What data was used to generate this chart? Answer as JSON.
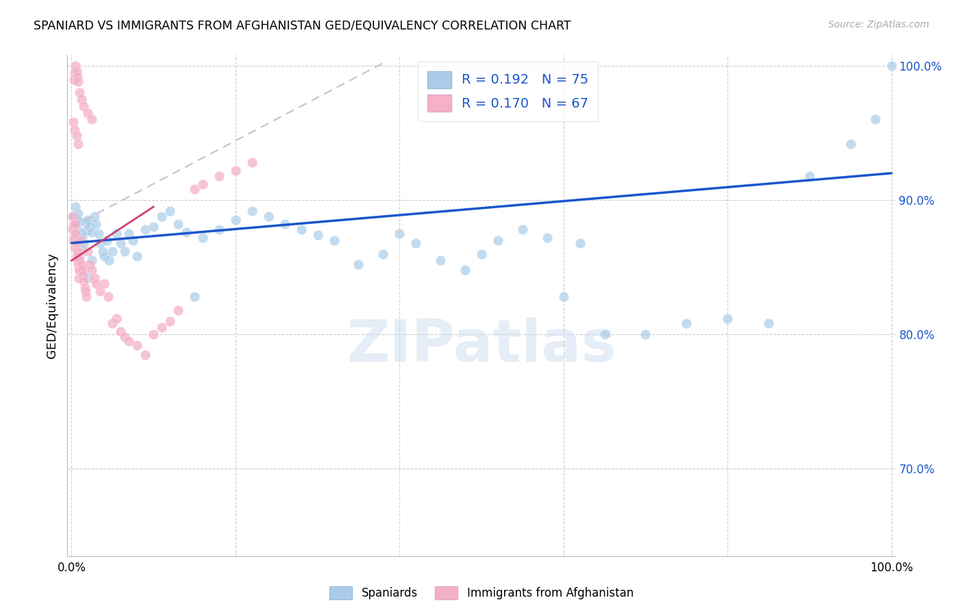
{
  "title": "SPANIARD VS IMMIGRANTS FROM AFGHANISTAN GED/EQUIVALENCY CORRELATION CHART",
  "source": "Source: ZipAtlas.com",
  "ylabel": "GED/Equivalency",
  "watermark": "ZIPatlas",
  "legend_blue_label": "Spaniards",
  "legend_pink_label": "Immigrants from Afghanistan",
  "R_blue": 0.192,
  "N_blue": 75,
  "R_pink": 0.17,
  "N_pink": 67,
  "blue_color": "#aacce8",
  "pink_color": "#f5b0c8",
  "trendline_blue_color": "#1a56cc",
  "trendline_pink_color": "#d04070",
  "trendline_dash_color": "#ccbbcc",
  "ylim_min": 0.635,
  "ylim_max": 1.008,
  "xlim_min": -0.005,
  "xlim_max": 1.005,
  "right_yticks": [
    0.7,
    0.8,
    0.9,
    1.0
  ],
  "right_yticklabels": [
    "70.0%",
    "80.0%",
    "90.0%",
    "100.0%"
  ],
  "xticks": [
    0.0,
    1.0
  ],
  "xticklabels": [
    "0.0%",
    "100.0%"
  ],
  "grid_yticks": [
    0.7,
    0.8,
    0.9,
    1.0
  ],
  "grid_xticks": [
    0.0,
    0.2,
    0.4,
    0.6,
    0.8,
    1.0
  ],
  "blue_trend_x0": 0.0,
  "blue_trend_y0": 0.868,
  "blue_trend_x1": 1.0,
  "blue_trend_y1": 0.92,
  "pink_trend_solid_x0": 0.0,
  "pink_trend_solid_y0": 0.855,
  "pink_trend_solid_x1": 0.1,
  "pink_trend_solid_y1": 0.895,
  "pink_trend_dash_x0": 0.0,
  "pink_trend_dash_y0": 0.88,
  "pink_trend_dash_x1": 0.38,
  "pink_trend_dash_y1": 1.002,
  "blue_x": [
    0.002,
    0.003,
    0.004,
    0.005,
    0.006,
    0.007,
    0.008,
    0.009,
    0.01,
    0.012,
    0.013,
    0.015,
    0.017,
    0.018,
    0.02,
    0.022,
    0.025,
    0.028,
    0.03,
    0.033,
    0.035,
    0.038,
    0.04,
    0.043,
    0.046,
    0.05,
    0.055,
    0.06,
    0.065,
    0.07,
    0.075,
    0.08,
    0.09,
    0.1,
    0.11,
    0.12,
    0.13,
    0.14,
    0.15,
    0.16,
    0.18,
    0.2,
    0.22,
    0.24,
    0.26,
    0.28,
    0.3,
    0.32,
    0.35,
    0.38,
    0.4,
    0.42,
    0.45,
    0.48,
    0.5,
    0.52,
    0.55,
    0.58,
    0.6,
    0.62,
    0.65,
    0.7,
    0.75,
    0.8,
    0.85,
    0.9,
    0.95,
    0.98,
    1.0,
    0.008,
    0.01,
    0.012,
    0.015,
    0.02,
    0.025
  ],
  "blue_y": [
    0.888,
    0.882,
    0.876,
    0.895,
    0.885,
    0.878,
    0.89,
    0.884,
    0.87,
    0.875,
    0.872,
    0.868,
    0.883,
    0.877,
    0.885,
    0.88,
    0.876,
    0.888,
    0.882,
    0.875,
    0.868,
    0.862,
    0.858,
    0.87,
    0.855,
    0.862,
    0.875,
    0.868,
    0.862,
    0.875,
    0.87,
    0.858,
    0.878,
    0.88,
    0.888,
    0.892,
    0.882,
    0.876,
    0.828,
    0.872,
    0.878,
    0.885,
    0.892,
    0.888,
    0.882,
    0.878,
    0.874,
    0.87,
    0.852,
    0.86,
    0.875,
    0.868,
    0.855,
    0.848,
    0.86,
    0.87,
    0.878,
    0.872,
    0.828,
    0.868,
    0.8,
    0.8,
    0.808,
    0.812,
    0.808,
    0.918,
    0.942,
    0.96,
    1.0,
    0.87,
    0.858,
    0.865,
    0.848,
    0.842,
    0.855
  ],
  "pink_x": [
    0.001,
    0.001,
    0.002,
    0.002,
    0.003,
    0.003,
    0.004,
    0.004,
    0.005,
    0.005,
    0.006,
    0.006,
    0.007,
    0.007,
    0.008,
    0.008,
    0.009,
    0.009,
    0.01,
    0.01,
    0.011,
    0.012,
    0.013,
    0.014,
    0.015,
    0.016,
    0.017,
    0.018,
    0.02,
    0.022,
    0.025,
    0.028,
    0.03,
    0.035,
    0.04,
    0.045,
    0.05,
    0.055,
    0.06,
    0.065,
    0.07,
    0.08,
    0.09,
    0.1,
    0.11,
    0.12,
    0.13,
    0.15,
    0.16,
    0.18,
    0.2,
    0.22,
    0.003,
    0.004,
    0.005,
    0.006,
    0.007,
    0.008,
    0.01,
    0.012,
    0.015,
    0.02,
    0.025,
    0.002,
    0.004,
    0.006,
    0.008
  ],
  "pink_y": [
    0.878,
    0.888,
    0.87,
    0.88,
    0.882,
    0.872,
    0.865,
    0.87,
    0.875,
    0.882,
    0.858,
    0.868,
    0.855,
    0.862,
    0.852,
    0.858,
    0.848,
    0.842,
    0.855,
    0.848,
    0.87,
    0.852,
    0.848,
    0.844,
    0.84,
    0.835,
    0.832,
    0.828,
    0.862,
    0.852,
    0.848,
    0.842,
    0.838,
    0.832,
    0.838,
    0.828,
    0.808,
    0.812,
    0.802,
    0.798,
    0.795,
    0.792,
    0.785,
    0.8,
    0.805,
    0.81,
    0.818,
    0.908,
    0.912,
    0.918,
    0.922,
    0.928,
    0.99,
    0.995,
    1.0,
    0.996,
    0.992,
    0.988,
    0.98,
    0.975,
    0.97,
    0.965,
    0.96,
    0.958,
    0.952,
    0.948,
    0.942
  ]
}
